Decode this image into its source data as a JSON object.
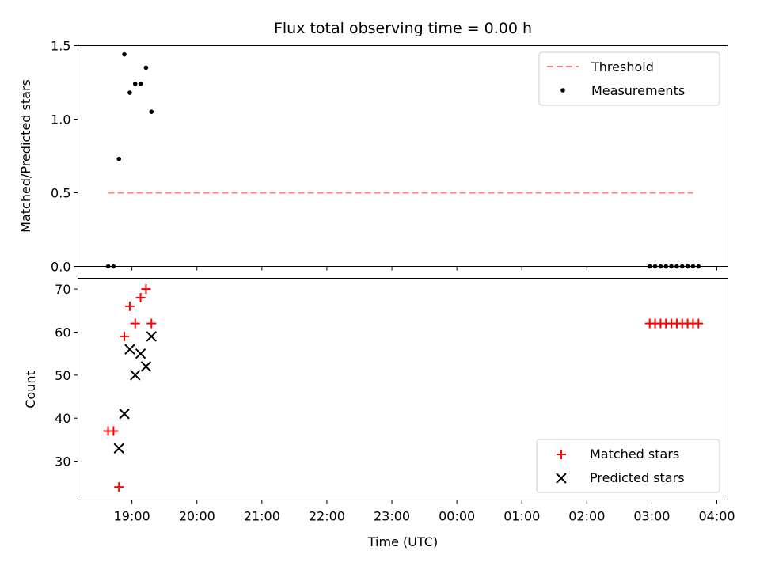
{
  "chart_data": [
    {
      "type": "scatter",
      "title": "Flux total observing time = 0.00 h",
      "xlabel": "",
      "ylabel": "Matched/Predicted stars",
      "ylim": [
        0,
        1.5
      ],
      "yticks": [
        "0.0",
        "0.5",
        "1.0",
        "1.5"
      ],
      "xticks": [
        "19:00",
        "20:00",
        "21:00",
        "22:00",
        "23:00",
        "00:00",
        "01:00",
        "02:00",
        "03:00",
        "04:00"
      ],
      "xlim_hours": [
        18.17,
        28.17
      ],
      "legend_position": "top-right",
      "lines": [
        {
          "name": "Threshold",
          "color": "#ff7f7f",
          "style": "dashed",
          "x": [
            "18:38",
            "27:38"
          ],
          "y": [
            0.5,
            0.5
          ]
        }
      ],
      "series": [
        {
          "name": "Measurements",
          "color": "#000000",
          "marker": "dot",
          "x": [
            "18:38",
            "18:43",
            "18:48",
            "18:53",
            "18:58",
            "19:03",
            "19:08",
            "19:13",
            "19:18",
            "26:58",
            "27:03",
            "27:08",
            "27:13",
            "27:18",
            "27:23",
            "27:28",
            "27:33",
            "27:38",
            "27:43"
          ],
          "y": [
            0.0,
            0.0,
            0.73,
            1.44,
            1.18,
            1.24,
            1.24,
            1.35,
            1.05,
            0.0,
            0.0,
            0.0,
            0.0,
            0.0,
            0.0,
            0.0,
            0.0,
            0.0,
            0.0
          ]
        }
      ]
    },
    {
      "type": "scatter",
      "title": "",
      "xlabel": "Time (UTC)",
      "ylabel": "Count",
      "ylim": [
        21,
        72.5
      ],
      "yticks": [
        "30",
        "40",
        "50",
        "60",
        "70"
      ],
      "xticks": [
        "19:00",
        "20:00",
        "21:00",
        "22:00",
        "23:00",
        "00:00",
        "01:00",
        "02:00",
        "03:00",
        "04:00"
      ],
      "xlim_hours": [
        18.17,
        28.17
      ],
      "legend_position": "bottom-right",
      "series": [
        {
          "name": "Matched stars",
          "color": "#ff0000",
          "marker": "plus",
          "x": [
            "18:38",
            "18:43",
            "18:48",
            "18:53",
            "18:58",
            "19:03",
            "19:08",
            "19:13",
            "19:18",
            "26:58",
            "27:03",
            "27:08",
            "27:13",
            "27:18",
            "27:23",
            "27:28",
            "27:33",
            "27:38",
            "27:43"
          ],
          "y": [
            37,
            37,
            24,
            59,
            66,
            62,
            68,
            70,
            62,
            62,
            62,
            62,
            62,
            62,
            62,
            62,
            62,
            62,
            62
          ]
        },
        {
          "name": "Predicted stars",
          "color": "#000000",
          "marker": "x",
          "x": [
            "18:48",
            "18:53",
            "18:58",
            "19:03",
            "19:08",
            "19:13",
            "19:18"
          ],
          "y": [
            33,
            41,
            56,
            50,
            55,
            52,
            59
          ]
        }
      ]
    }
  ]
}
